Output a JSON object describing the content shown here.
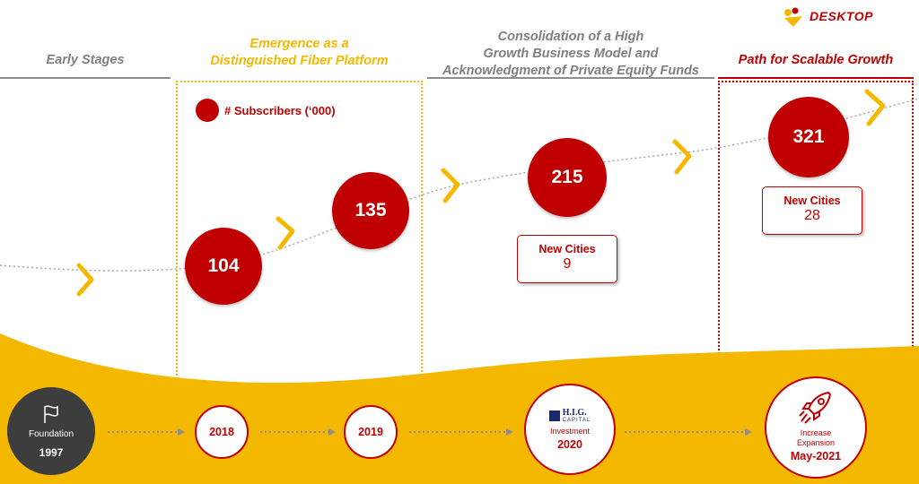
{
  "brand": {
    "name": "DESKTOP"
  },
  "phases": [
    {
      "title": "Early Stages"
    },
    {
      "title": "Emergence as a\nDistinguished Fiber Platform"
    },
    {
      "title": "Consolidation of a High\nGrowth Business Model and\nAcknowledgment of Private Equity Funds"
    },
    {
      "title": "Path for Scalable Growth"
    }
  ],
  "legend": {
    "label": "# Subscribers (‘000)"
  },
  "chart_data": {
    "type": "scatter",
    "series": [
      {
        "name": "# Subscribers (‘000)",
        "categories": [
          "2018",
          "2019",
          "2020",
          "May-2021"
        ],
        "values": [
          104,
          135,
          215,
          321
        ]
      }
    ]
  },
  "cards": [
    {
      "title": "New Cities",
      "value": "9"
    },
    {
      "title": "New Cities",
      "value": "28"
    }
  ],
  "milestones": [
    {
      "label": "Foundation",
      "year": "1997"
    },
    {
      "year": "2018"
    },
    {
      "year": "2019"
    },
    {
      "logo_text": "H.I.G.",
      "logo_sub": "CAPITAL",
      "label": "Investment",
      "year": "2020"
    },
    {
      "label": "Increase\nExpansion",
      "year": "May-2021"
    }
  ],
  "colors": {
    "red": "#c00000",
    "gold": "#f5b800",
    "grey": "#7f7f7f",
    "dark": "#3d3d3d"
  },
  "icons": [
    "desktop-logo-icon",
    "flag-icon",
    "rocket-icon",
    "chevron-right-icon",
    "hig-capital-logo"
  ]
}
